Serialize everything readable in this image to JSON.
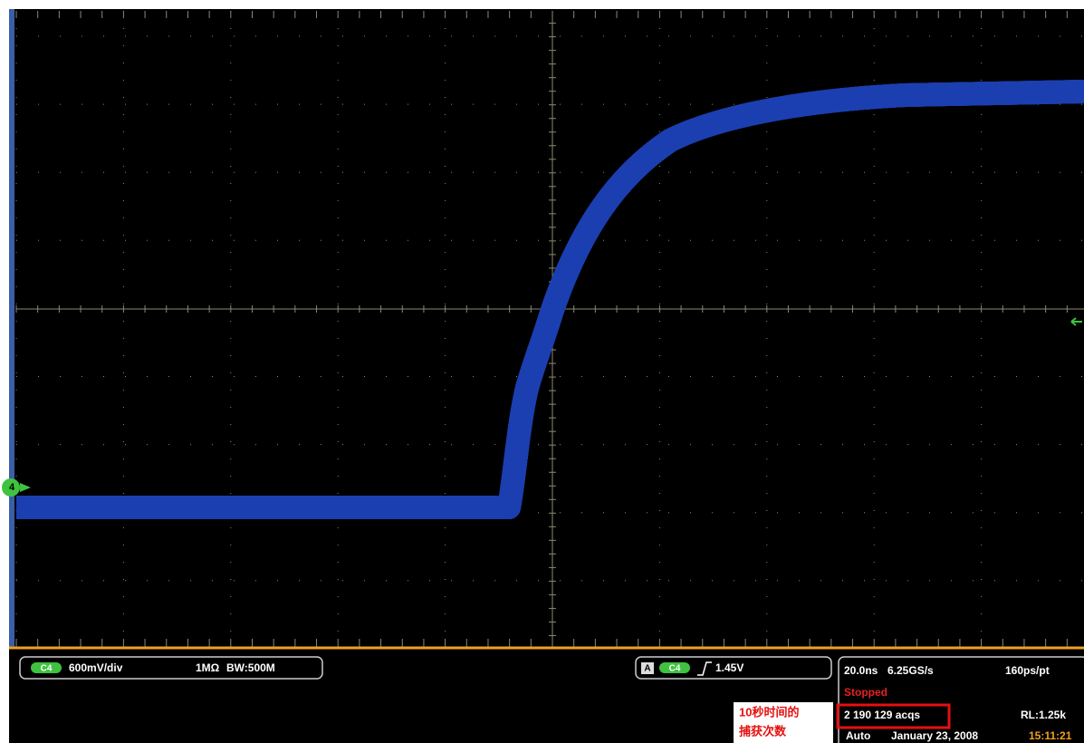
{
  "screen": {
    "channel_marker": "4"
  },
  "status_bar": {
    "channel": "C4",
    "scale": "600mV/div",
    "impedance": "1MΩ",
    "bandwidth": "BW:500M",
    "trigger_source": "A",
    "trigger_channel": "C4",
    "trigger_level": "1.45V",
    "timebase": "20.0ns",
    "sample_rate": "6.25GS/s",
    "resolution": "160ps/pt",
    "state": "Stopped",
    "acquisitions": "2 190 129 acqs",
    "record_length": "RL:1.25k",
    "mode": "Auto",
    "date": "January 23, 2008",
    "time": "15:11:21"
  },
  "annotation": {
    "lines": [
      "10秒时间的",
      "捕获次数"
    ]
  }
}
